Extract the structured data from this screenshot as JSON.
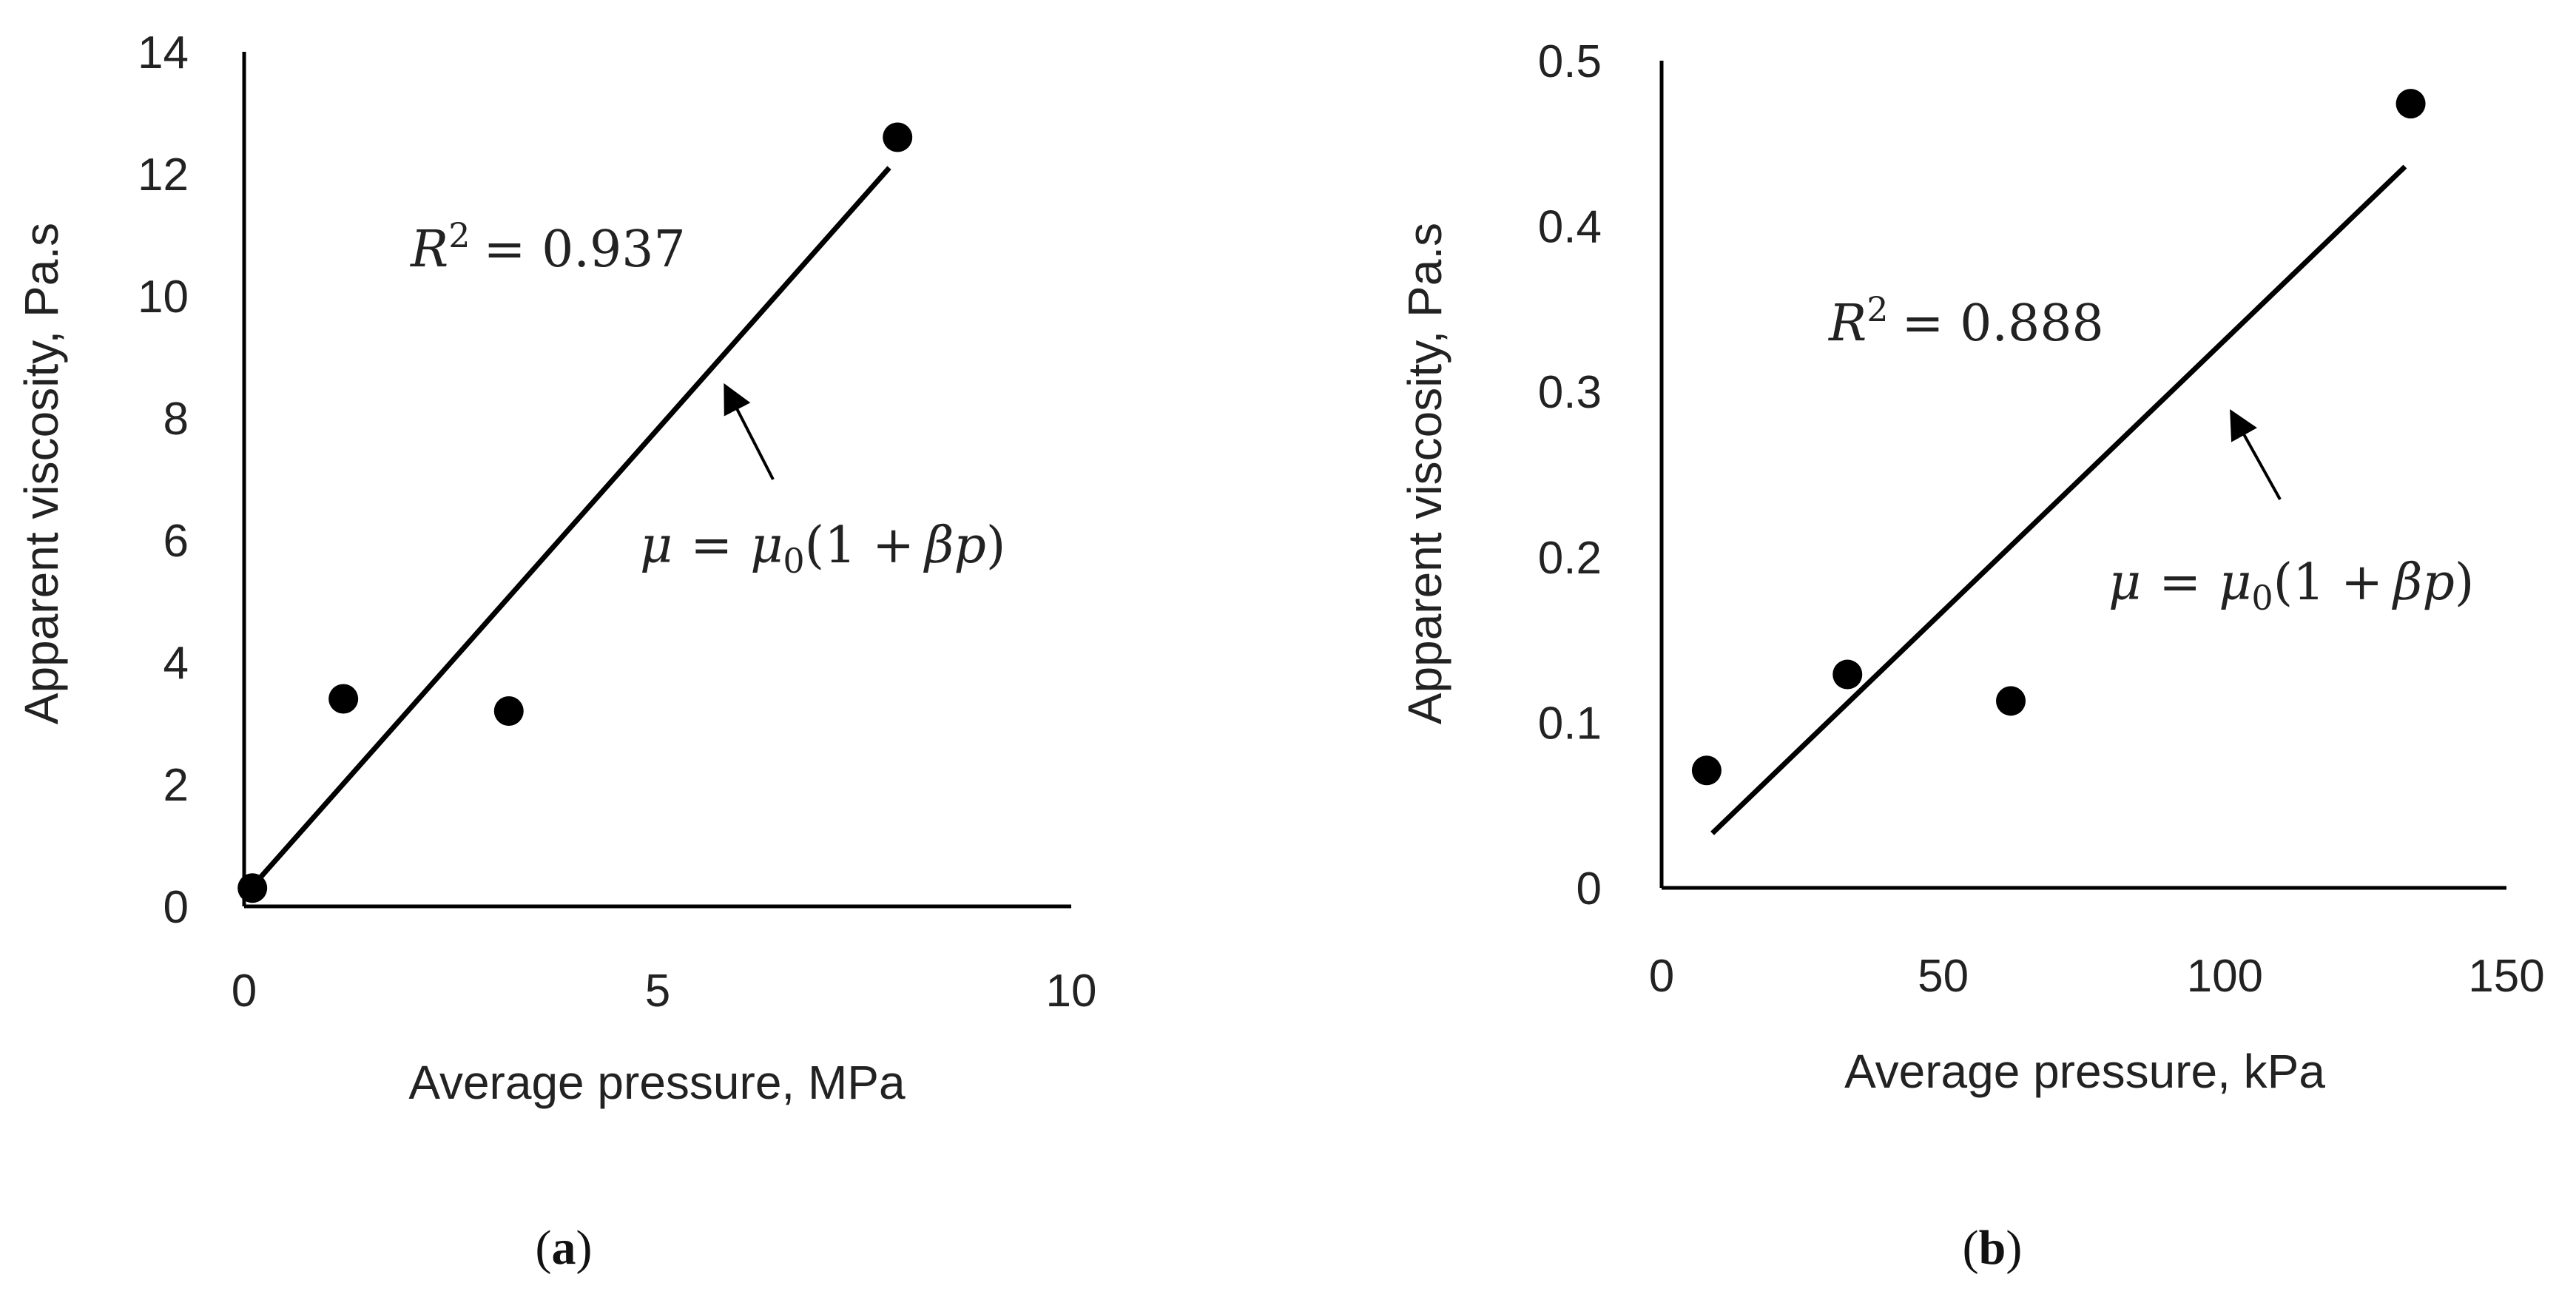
{
  "chart_data": [
    {
      "type": "scatter",
      "panel": "a",
      "panel_label": "a",
      "xlabel": "Average pressure, MPa",
      "ylabel": "Apparent viscosity, Pa.s",
      "xlim": [
        0,
        10
      ],
      "ylim": [
        0,
        14
      ],
      "xticks": [
        "0",
        "5",
        "10"
      ],
      "yticks": [
        "0",
        "2",
        "4",
        "6",
        "8",
        "10",
        "12",
        "14"
      ],
      "points": [
        {
          "x": 0.1,
          "y": 0.3
        },
        {
          "x": 1.2,
          "y": 3.4
        },
        {
          "x": 3.2,
          "y": 3.2
        },
        {
          "x": 7.9,
          "y": 12.6
        }
      ],
      "fit_line": {
        "x": [
          0.05,
          7.8
        ],
        "y": [
          0.25,
          12.1
        ]
      },
      "r2_var": "R",
      "r2_exp": "2",
      "r2_value": "= 0.937",
      "eq_mu": "μ",
      "eq_equals": "=",
      "eq_mu0": "μ",
      "eq_sub": "0",
      "eq_open": "(1 +",
      "eq_beta_p": "βp",
      "eq_close": ")"
    },
    {
      "type": "scatter",
      "panel": "b",
      "panel_label": "b",
      "xlabel": "Average pressure, kPa",
      "ylabel": "Apparent viscosity, Pa.s",
      "xlim": [
        0,
        150
      ],
      "ylim": [
        0,
        0.5
      ],
      "xticks": [
        "0",
        "50",
        "100",
        "150"
      ],
      "yticks": [
        "0",
        "0.1",
        "0.2",
        "0.3",
        "0.4",
        "0.5"
      ],
      "points": [
        {
          "x": 8,
          "y": 0.071
        },
        {
          "x": 33,
          "y": 0.129
        },
        {
          "x": 62,
          "y": 0.113
        },
        {
          "x": 133,
          "y": 0.474
        }
      ],
      "fit_line": {
        "x": [
          9,
          132
        ],
        "y": [
          0.033,
          0.436
        ]
      },
      "r2_var": "R",
      "r2_exp": "2",
      "r2_value": "= 0.888",
      "eq_mu": "μ",
      "eq_equals": "=",
      "eq_mu0": "μ",
      "eq_sub": "0",
      "eq_open": "(1 +",
      "eq_beta_p": "βp",
      "eq_close": ")"
    }
  ]
}
